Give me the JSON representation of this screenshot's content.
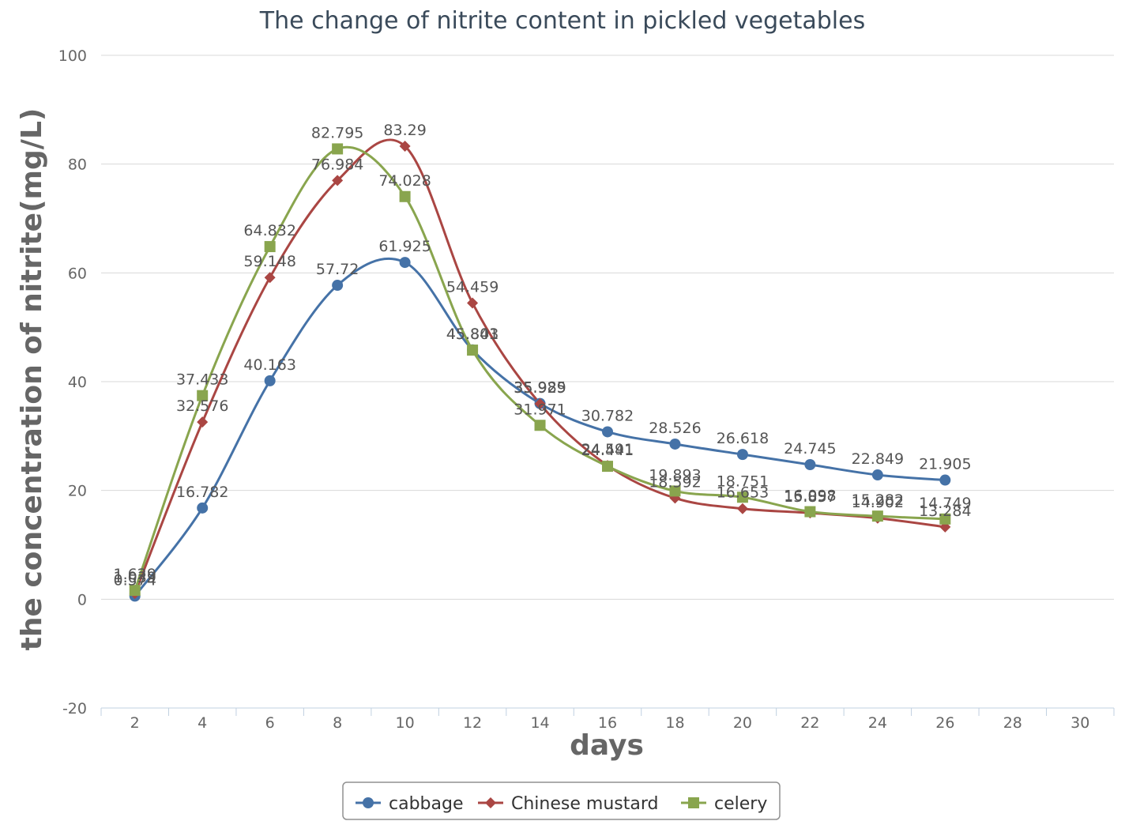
{
  "chart_data": {
    "type": "line",
    "title": "The change of nitrite content in pickled vegetables",
    "xlabel": "days",
    "ylabel": "the concentration of nitrite(mg/L)",
    "x": [
      2,
      4,
      6,
      8,
      10,
      12,
      14,
      16,
      18,
      20,
      22,
      24,
      26
    ],
    "xlim": [
      1,
      31
    ],
    "ylim": [
      -20,
      100
    ],
    "x_ticks": [
      "2",
      "4",
      "6",
      "8",
      "10",
      "12",
      "14",
      "16",
      "18",
      "20",
      "22",
      "24",
      "26",
      "28",
      "30"
    ],
    "y_ticks": [
      "-20",
      "0",
      "20",
      "40",
      "60",
      "80",
      "100"
    ],
    "grid": true,
    "legend_position": "bottom-center",
    "series": [
      {
        "name": "cabbage",
        "color": "#4572a7",
        "marker": "circle",
        "values": [
          0.574,
          16.782,
          40.163,
          57.72,
          61.925,
          45.843,
          35.985,
          30.782,
          28.526,
          26.618,
          24.745,
          22.849,
          21.905
        ],
        "labels": [
          "0.574",
          "16.782",
          "40.163",
          "57.72",
          "61.925",
          "45.843",
          "35.985",
          "30.782",
          "28.526",
          "26.618",
          "24.745",
          "22.849",
          "21.905"
        ]
      },
      {
        "name": "Chinese mustard",
        "color": "#aa4643",
        "marker": "diamond",
        "values": [
          1.039,
          32.576,
          59.148,
          76.984,
          83.29,
          54.459,
          35.929,
          24.591,
          18.592,
          16.653,
          15.857,
          14.902,
          13.284
        ],
        "labels": [
          "1.039",
          "32.576",
          "59.148",
          "76.984",
          "83.29",
          "54.459",
          "35.929",
          "24.591",
          "18.592",
          "16.653",
          "15.857",
          "14.902",
          "13.284"
        ]
      },
      {
        "name": "celery",
        "color": "#89a54e",
        "marker": "square",
        "values": [
          1.629,
          37.433,
          64.832,
          82.795,
          74.028,
          45.801,
          31.971,
          24.441,
          19.893,
          18.751,
          16.098,
          15.282,
          14.749
        ],
        "labels": [
          "1.629",
          "37.433",
          "64.832",
          "82.795",
          "74.028",
          "45.801",
          "31.971",
          "24.441",
          "19.893",
          "18.751",
          "16.098",
          "15.282",
          "14.749"
        ]
      }
    ]
  }
}
